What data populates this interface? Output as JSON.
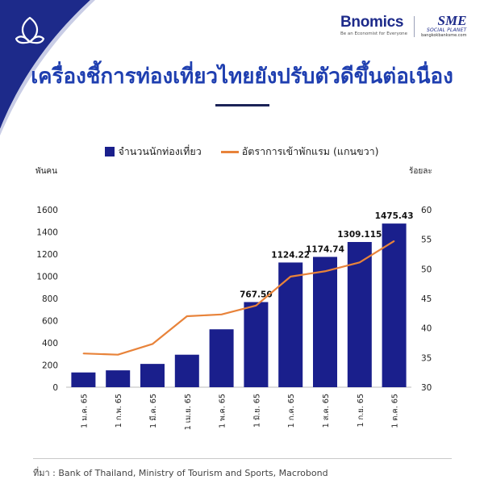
{
  "header": {
    "brand_name": "Bnomics",
    "brand_tagline": "Be an Economist for Everyone",
    "partner_name": "SME",
    "partner_sub": "SOCIAL PLANET",
    "partner_url": "bangkokbanksme.com"
  },
  "title": "เครื่องชี้การท่องเที่ยวไทยยังปรับตัวดีขึ้นต่อเนื่อง",
  "source": "ที่มา : Bank of Thailand, Ministry of Tourism and Sports, Macrobond",
  "colors": {
    "bars": "#1a1f8c",
    "line": "#e8833a",
    "title": "#1f3fb0"
  },
  "chart_data": {
    "type": "bar",
    "categories": [
      "1 ม.ค. 65",
      "1 ก.พ. 65",
      "1 มี.ค. 65",
      "1 เม.ย. 65",
      "1 พ.ค. 65",
      "1 มิ.ย. 65",
      "1 ก.ค. 65",
      "1 ส.ค. 65",
      "1 ก.ย. 65",
      "1 ต.ค. 65"
    ],
    "series": [
      {
        "name": "จำนวนนักท่องเที่ยว",
        "kind": "bar",
        "axis": "left",
        "values": [
          133,
          152,
          210,
          293,
          522,
          767.5,
          1124.22,
          1174.74,
          1309.115,
          1475.43
        ],
        "labels": [
          "",
          "",
          "",
          "",
          "",
          "767.50",
          "1124.22",
          "1174.74",
          "1309.115",
          "1475.43"
        ]
      },
      {
        "name": "อัตราการเข้าพักแรม (แกนขวา)",
        "kind": "line",
        "axis": "right",
        "values": [
          35.7,
          35.5,
          37.3,
          42.0,
          42.3,
          43.8,
          48.7,
          49.6,
          51.1,
          54.7
        ]
      }
    ],
    "y_left": {
      "label": "พันคน",
      "lim": [
        0,
        1600
      ],
      "ticks": [
        0,
        200,
        400,
        600,
        800,
        1000,
        1200,
        1400,
        1600
      ]
    },
    "y_right": {
      "label": "ร้อยละ",
      "lim": [
        30,
        60
      ],
      "ticks": [
        30,
        35,
        40,
        45,
        50,
        55,
        60
      ]
    },
    "grid": false,
    "legend_position": "top-center"
  }
}
